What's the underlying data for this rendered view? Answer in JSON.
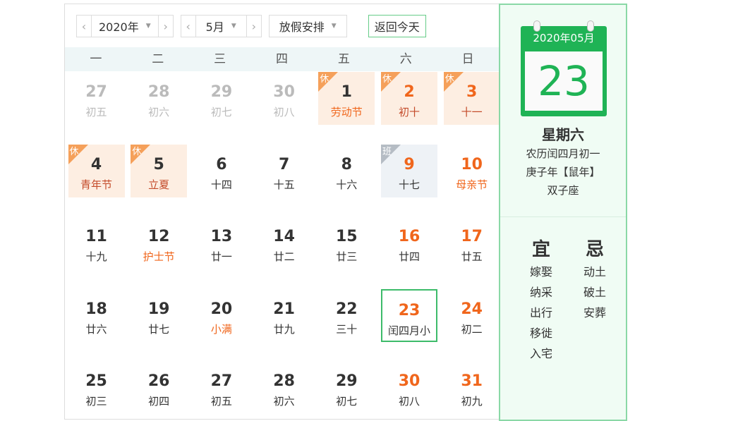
{
  "toolbar": {
    "year": "2020年",
    "month": "5月",
    "holiday": "放假安排",
    "today": "返回今天",
    "prev": "‹",
    "next": "›",
    "caret": "▼"
  },
  "weekdays": [
    "一",
    "二",
    "三",
    "四",
    "五",
    "六",
    "日"
  ],
  "weeks": [
    [
      {
        "d": "27",
        "l": "初五",
        "t": "other"
      },
      {
        "d": "28",
        "l": "初六",
        "t": "other"
      },
      {
        "d": "29",
        "l": "初七",
        "t": "other"
      },
      {
        "d": "30",
        "l": "初八",
        "t": "other"
      },
      {
        "d": "1",
        "l": "劳动节",
        "t": "hol fest",
        "tag": "休"
      },
      {
        "d": "2",
        "l": "初十",
        "t": "hol we",
        "tag": "休"
      },
      {
        "d": "3",
        "l": "十一",
        "t": "hol we",
        "tag": "休"
      }
    ],
    [
      {
        "d": "4",
        "l": "青年节",
        "t": "hol",
        "tag": "休"
      },
      {
        "d": "5",
        "l": "立夏",
        "t": "hol",
        "tag": "休"
      },
      {
        "d": "6",
        "l": "十四",
        "t": ""
      },
      {
        "d": "7",
        "l": "十五",
        "t": ""
      },
      {
        "d": "8",
        "l": "十六",
        "t": ""
      },
      {
        "d": "9",
        "l": "十七",
        "t": "work we",
        "tag": "班"
      },
      {
        "d": "10",
        "l": "母亲节",
        "t": "we fest"
      }
    ],
    [
      {
        "d": "11",
        "l": "十九",
        "t": ""
      },
      {
        "d": "12",
        "l": "护士节",
        "t": "fest"
      },
      {
        "d": "13",
        "l": "廿一",
        "t": ""
      },
      {
        "d": "14",
        "l": "廿二",
        "t": ""
      },
      {
        "d": "15",
        "l": "廿三",
        "t": ""
      },
      {
        "d": "16",
        "l": "廿四",
        "t": "we"
      },
      {
        "d": "17",
        "l": "廿五",
        "t": "we"
      }
    ],
    [
      {
        "d": "18",
        "l": "廿六",
        "t": ""
      },
      {
        "d": "19",
        "l": "廿七",
        "t": ""
      },
      {
        "d": "20",
        "l": "小满",
        "t": "fest"
      },
      {
        "d": "21",
        "l": "廿九",
        "t": ""
      },
      {
        "d": "22",
        "l": "三十",
        "t": ""
      },
      {
        "d": "23",
        "l": "闰四月小",
        "t": "we today"
      },
      {
        "d": "24",
        "l": "初二",
        "t": "we"
      }
    ],
    [
      {
        "d": "25",
        "l": "初三",
        "t": ""
      },
      {
        "d": "26",
        "l": "初四",
        "t": ""
      },
      {
        "d": "27",
        "l": "初五",
        "t": ""
      },
      {
        "d": "28",
        "l": "初六",
        "t": ""
      },
      {
        "d": "29",
        "l": "初七",
        "t": ""
      },
      {
        "d": "30",
        "l": "初八",
        "t": "we"
      },
      {
        "d": "31",
        "l": "初九",
        "t": "we"
      }
    ]
  ],
  "detail": {
    "year_month": "2020年05月",
    "day": "23",
    "weekday": "星期六",
    "lunar": "农历闰四月初一",
    "ganzhi": "庚子年【鼠年】",
    "zodiac": "双子座",
    "yi_label": "宜",
    "yi": [
      "嫁娶",
      "纳采",
      "出行",
      "移徙",
      "入宅"
    ],
    "ji_label": "忌",
    "ji": [
      "动土",
      "破土",
      "安葬"
    ]
  },
  "colors": {
    "accent": "#1fb355",
    "weekend": "#f0661c",
    "holiday_bg": "#fdeee2",
    "holiday_tag": "#f5a05a"
  }
}
